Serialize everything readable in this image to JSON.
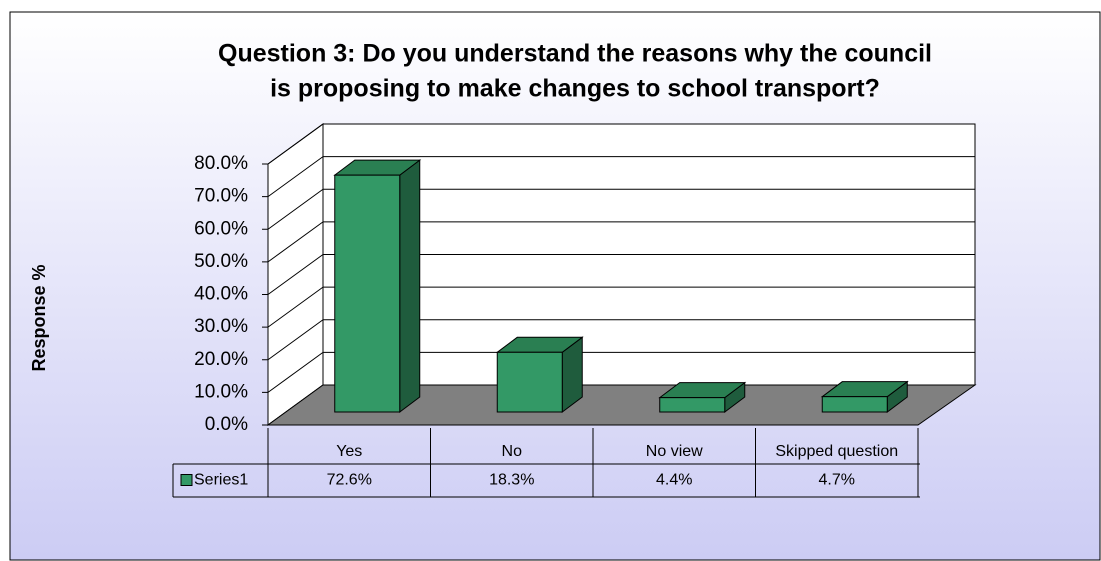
{
  "chart_data": {
    "type": "bar3d",
    "title": [
      "Question 3: Do you understand the reasons why the council",
      "is proposing to make changes to school transport?"
    ],
    "y_label": "Response %",
    "categories": [
      "Yes",
      "No",
      "No view",
      "Skipped question"
    ],
    "series": [
      {
        "name": "Series1",
        "color": "#339966",
        "values": [
          72.6,
          18.3,
          4.4,
          4.7
        ],
        "value_labels": [
          "72.6%",
          "18.3%",
          "4.4%",
          "4.7%"
        ]
      }
    ],
    "ylim": [
      0,
      80
    ],
    "yticks": [
      {
        "value": 0,
        "label": "0.0%"
      },
      {
        "value": 10,
        "label": "10.0%"
      },
      {
        "value": 20,
        "label": "20.0%"
      },
      {
        "value": 30,
        "label": "30.0%"
      },
      {
        "value": 40,
        "label": "40.0%"
      },
      {
        "value": 50,
        "label": "50.0%"
      },
      {
        "value": 60,
        "label": "60.0%"
      },
      {
        "value": 70,
        "label": "70.0%"
      },
      {
        "value": 80,
        "label": "80.0%"
      }
    ],
    "grid": true,
    "data_table": true
  }
}
